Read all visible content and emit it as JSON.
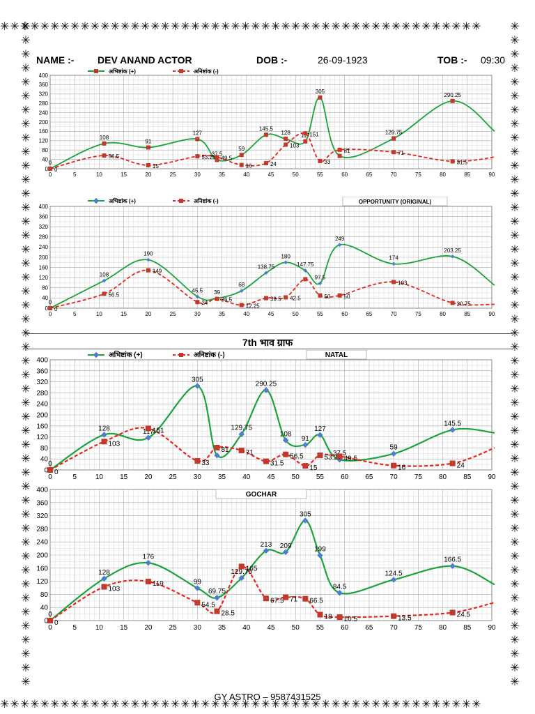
{
  "header": {
    "name_label": "NAME :-",
    "name_value": "DEV ANAND ACTOR",
    "dob_label": "DOB :-",
    "dob_value": "26-09-1923",
    "tob_label": "TOB :-",
    "tob_value": "09:30"
  },
  "section_title": "7th भाव  ग्राफ",
  "footer": "GY ASTRO – 9587431525",
  "colors": {
    "plus": "#1aa33a",
    "minus": "#e8231a",
    "marker_plus": "#4a7fd0",
    "marker_minus": "#c0392b"
  },
  "chart_data": [
    {
      "type": "line",
      "x_ticks": [
        0,
        5,
        10,
        15,
        20,
        25,
        30,
        35,
        40,
        45,
        50,
        55,
        60,
        65,
        70,
        75,
        80,
        85,
        90
      ],
      "y_ticks": [
        0,
        40,
        80,
        120,
        160,
        200,
        240,
        280,
        320,
        360,
        400
      ],
      "xlim": [
        0,
        90
      ],
      "ylim": [
        0,
        400
      ],
      "legend": [
        "अभिष्टांक  (+)",
        "अनिष्टांक  (-)"
      ],
      "box_label": "",
      "plus_marker": "square",
      "series": [
        {
          "name": "अभिष्टांक  (+)",
          "x": [
            0,
            11,
            20,
            30,
            34,
            39,
            44,
            48,
            52,
            55,
            59,
            70,
            82
          ],
          "y": [
            0,
            108,
            91,
            127,
            37.5,
            59,
            145.5,
            128,
            117,
            305,
            55,
            129.75,
            290.25
          ],
          "labels": [
            "0",
            "108",
            "91",
            "127",
            "37.5",
            "59",
            "145.5",
            "128",
            "117",
            "305",
            "",
            "129.75",
            "290.25"
          ],
          "tail": 160
        },
        {
          "name": "अनिष्टांक  (-)",
          "x": [
            0,
            11,
            20,
            30,
            34,
            39,
            44,
            48,
            52,
            55,
            59,
            70,
            82
          ],
          "y": [
            0,
            56.5,
            15,
            53.25,
            49.5,
            16,
            24,
            103,
            151,
            33,
            81,
            71,
            31.5
          ],
          "labels": [
            "0",
            "56.5",
            "15",
            "53.25",
            "49.5",
            "16",
            "24",
            "103",
            "151",
            "33",
            "81",
            "71",
            "31.5"
          ],
          "tail": 50
        }
      ]
    },
    {
      "type": "line",
      "x_ticks": [
        0,
        5,
        10,
        15,
        20,
        25,
        30,
        35,
        40,
        45,
        50,
        55,
        60,
        65,
        70,
        75,
        80,
        85,
        90
      ],
      "y_ticks": [
        0,
        40,
        80,
        120,
        160,
        200,
        240,
        280,
        320,
        360,
        400
      ],
      "xlim": [
        0,
        90
      ],
      "ylim": [
        0,
        400
      ],
      "legend": [
        "अभिष्टांक  (+)",
        "अनिष्टांक  (-)"
      ],
      "box_label": "OPPORTUNITY (ORIGINAL)",
      "plus_marker": "diamond",
      "series": [
        {
          "name": "अभिष्टांक  (+)",
          "x": [
            0,
            11,
            20,
            30,
            34,
            39,
            44,
            48,
            52,
            55,
            59,
            70,
            82
          ],
          "y": [
            0,
            108,
            190,
            45.5,
            39,
            68,
            138.75,
            180,
            147.75,
            97.5,
            249,
            174,
            203.25
          ],
          "labels": [
            "0",
            "108",
            "190",
            "45.5",
            "39",
            "68",
            "138.75",
            "180",
            "147.75",
            "97.5",
            "249",
            "174",
            "203.25"
          ],
          "tail": 90
        },
        {
          "name": "अनिष्टांक  (-)",
          "x": [
            0,
            11,
            20,
            30,
            34,
            39,
            44,
            48,
            52,
            55,
            59,
            70,
            82
          ],
          "y": [
            0,
            56.5,
            149,
            24,
            36.5,
            12.25,
            39.5,
            42.5,
            114,
            50,
            50,
            103,
            20.75
          ],
          "labels": [
            "0",
            "56.5",
            "149",
            "24",
            "36.5",
            "12.25",
            "39.5",
            "42.5",
            "",
            "50",
            "50",
            "103",
            "20.75"
          ],
          "tail": 15
        }
      ]
    },
    {
      "type": "line",
      "x_ticks": [
        0,
        5,
        10,
        15,
        20,
        25,
        30,
        35,
        40,
        45,
        50,
        55,
        60,
        65,
        70,
        75,
        80,
        85,
        90
      ],
      "y_ticks": [
        0,
        40,
        80,
        120,
        160,
        200,
        240,
        280,
        320,
        360,
        400
      ],
      "xlim": [
        0,
        90
      ],
      "ylim": [
        0,
        400
      ],
      "legend": [
        "अभिष्टांक  (+)",
        "अनिष्टांक  (-)"
      ],
      "box_label": "NATAL",
      "plus_marker": "diamond",
      "series": [
        {
          "name": "अभिष्टांक  (+)",
          "x": [
            0,
            11,
            20,
            30,
            34,
            39,
            44,
            48,
            52,
            55,
            59,
            70,
            82
          ],
          "y": [
            0,
            128,
            117,
            305,
            53,
            129.75,
            290.25,
            108,
            91,
            127,
            37.5,
            59,
            145.5
          ],
          "labels": [
            "0",
            "128",
            "117",
            "305",
            "",
            "129.75",
            "290.25",
            "108",
            "91",
            "127",
            "37.5",
            "59",
            "145.5"
          ],
          "tail": 135
        },
        {
          "name": "अनिष्टांक  (-)",
          "x": [
            0,
            11,
            20,
            30,
            34,
            39,
            44,
            48,
            52,
            55,
            59,
            70,
            82
          ],
          "y": [
            0,
            103,
            151,
            33,
            81,
            71,
            31.5,
            56.5,
            15,
            53.25,
            49.5,
            16,
            24
          ],
          "labels": [
            "0",
            "103",
            "151",
            "33",
            "81",
            "71",
            "31.5",
            "56.5",
            "15",
            "53.25",
            "49.5",
            "16",
            "24"
          ],
          "tail": 80
        }
      ]
    },
    {
      "type": "line",
      "x_ticks": [
        0,
        5,
        10,
        15,
        20,
        25,
        30,
        35,
        40,
        45,
        50,
        55,
        60,
        65,
        70,
        75,
        80,
        85,
        90
      ],
      "y_ticks": [
        0,
        40,
        80,
        120,
        160,
        200,
        240,
        280,
        320,
        360,
        400
      ],
      "xlim": [
        0,
        90
      ],
      "ylim": [
        0,
        400
      ],
      "legend": [],
      "box_label": "GOCHAR",
      "plus_marker": "diamond",
      "series": [
        {
          "name": "अभिष्टांक  (+)",
          "x": [
            0,
            11,
            20,
            30,
            34,
            39,
            44,
            48,
            52,
            55,
            59,
            70,
            82
          ],
          "y": [
            0,
            128,
            176,
            99,
            69.75,
            129.75,
            213,
            209,
            305,
            199,
            84.5,
            124.5,
            166.5
          ],
          "labels": [
            "0",
            "128",
            "176",
            "99",
            "69.75",
            "129.75",
            "213",
            "209",
            "305",
            "199",
            "84.5",
            "124.5",
            "166.5"
          ],
          "tail": 110
        },
        {
          "name": "अनिष्टांक  (-)",
          "x": [
            0,
            11,
            20,
            30,
            34,
            39,
            44,
            48,
            52,
            55,
            59,
            70,
            82
          ],
          "y": [
            0,
            103,
            119,
            54.5,
            28.5,
            165,
            67.5,
            71,
            66.5,
            18,
            10.5,
            13.5,
            24.5
          ],
          "labels": [
            "0",
            "103",
            "119",
            "54.5",
            "28.5",
            "165",
            "67.5",
            "71",
            "66.5",
            "18",
            "10.5",
            "13.5",
            "24.5"
          ],
          "tail": 55
        }
      ]
    }
  ]
}
